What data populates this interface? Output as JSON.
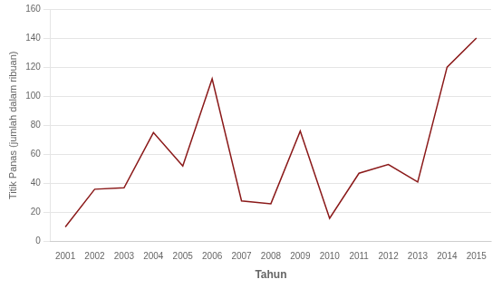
{
  "chart_data": {
    "type": "line",
    "x": [
      2001,
      2002,
      2003,
      2004,
      2005,
      2006,
      2007,
      2008,
      2009,
      2010,
      2011,
      2012,
      2013,
      2014,
      2015
    ],
    "values": [
      10,
      36,
      37,
      75,
      52,
      112,
      28,
      26,
      76,
      16,
      47,
      53,
      41,
      120,
      140
    ],
    "color": "#8B1A1A",
    "xlabel": "Tahun",
    "ylabel": "Titik Panas (jumlah dalam ribuan)",
    "xlim": [
      2000.5,
      2015.5
    ],
    "xticks": [
      2001,
      2002,
      2003,
      2004,
      2005,
      2006,
      2007,
      2008,
      2009,
      2010,
      2011,
      2012,
      2013,
      2014,
      2015
    ],
    "ylim": [
      0,
      160
    ],
    "yticks": [
      0,
      20,
      40,
      60,
      80,
      100,
      120,
      140,
      160
    ],
    "grid": true
  }
}
